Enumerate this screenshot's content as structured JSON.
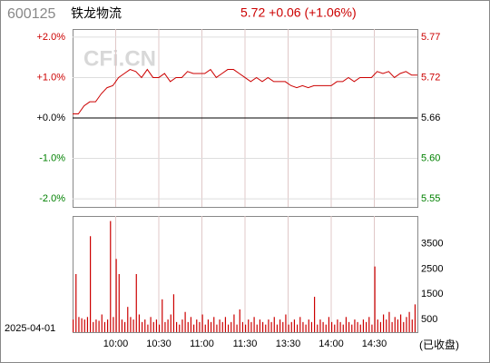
{
  "header": {
    "code": "600125",
    "name": "铁龙物流",
    "quote": "5.72 +0.06 (+1.06%)"
  },
  "watermark": "CFi.CN",
  "date": "2025-04-01",
  "status": "(已收盘)",
  "colors": {
    "up": "#cc0000",
    "down": "#008000",
    "flat": "#000000"
  },
  "chart_data": [
    {
      "type": "line",
      "x": [
        0,
        4,
        8,
        12,
        16,
        20,
        24,
        28,
        32,
        36,
        40,
        44,
        48,
        52,
        56,
        60,
        64,
        68,
        72,
        76,
        80,
        84,
        88,
        92,
        96,
        100,
        104,
        108,
        112,
        116,
        120,
        124,
        128,
        132,
        136,
        140,
        144,
        148,
        152,
        156,
        160,
        164,
        168,
        172,
        176,
        180,
        184,
        188,
        192,
        196,
        200,
        204,
        208,
        212,
        216,
        220,
        224,
        228,
        232,
        236,
        240
      ],
      "series": [
        {
          "color": "#cc0000",
          "values": [
            0.1,
            0.1,
            0.3,
            0.4,
            0.4,
            0.6,
            0.75,
            0.8,
            1.0,
            1.1,
            1.2,
            1.15,
            1.0,
            1.2,
            1.0,
            1.0,
            1.1,
            0.9,
            1.0,
            1.0,
            1.15,
            1.1,
            1.1,
            1.1,
            1.2,
            1.0,
            1.1,
            1.2,
            1.2,
            1.1,
            1.0,
            0.9,
            1.0,
            0.9,
            1.0,
            0.9,
            0.9,
            0.9,
            0.8,
            0.75,
            0.8,
            0.75,
            0.8,
            0.8,
            0.8,
            0.8,
            0.9,
            0.9,
            1.0,
            0.9,
            1.0,
            1.0,
            1.0,
            1.15,
            1.1,
            1.15,
            1.0,
            1.1,
            1.15,
            1.06,
            1.06
          ]
        }
      ],
      "xlim": [
        0,
        240
      ],
      "ylim": [
        -2.2,
        2.2
      ],
      "yticks": [
        {
          "value": 2,
          "label": "+2.0%"
        },
        {
          "value": 1,
          "label": "+1.0%"
        },
        {
          "value": 0,
          "label": "+0.0%"
        },
        {
          "value": -1,
          "label": "-1.0%"
        },
        {
          "value": -2,
          "label": "-2.0%"
        }
      ],
      "y2lim": [
        5.5355,
        5.7845
      ],
      "y2ticks": [
        {
          "value": 5.7732,
          "label": "5.77"
        },
        {
          "value": 5.7166,
          "label": "5.72"
        },
        5.66,
        {
          "value": 5.6034,
          "label": "5.60"
        },
        {
          "value": 5.5468,
          "label": "5.55"
        }
      ],
      "grid": true
    },
    {
      "type": "bar",
      "x": [
        0,
        2,
        4,
        6,
        8,
        10,
        12,
        14,
        16,
        18,
        20,
        22,
        24,
        26,
        28,
        30,
        32,
        34,
        36,
        38,
        40,
        42,
        44,
        46,
        48,
        50,
        52,
        54,
        56,
        58,
        60,
        62,
        64,
        66,
        68,
        70,
        72,
        74,
        76,
        78,
        80,
        82,
        84,
        86,
        88,
        90,
        92,
        94,
        96,
        98,
        100,
        102,
        104,
        106,
        108,
        110,
        112,
        114,
        116,
        118,
        120,
        122,
        124,
        126,
        128,
        130,
        132,
        134,
        136,
        138,
        140,
        142,
        144,
        146,
        148,
        150,
        152,
        154,
        156,
        158,
        160,
        162,
        164,
        166,
        168,
        170,
        172,
        174,
        176,
        178,
        180,
        182,
        184,
        186,
        188,
        190,
        192,
        194,
        196,
        198,
        200,
        202,
        204,
        206,
        208,
        210,
        212,
        214,
        216,
        218,
        220,
        222,
        224,
        226,
        228,
        230,
        232,
        234,
        236,
        238
      ],
      "values": [
        500,
        2300,
        600,
        550,
        500,
        600,
        3800,
        400,
        500,
        450,
        700,
        400,
        500,
        4400,
        600,
        2900,
        2300,
        500,
        400,
        1000,
        600,
        500,
        2300,
        700,
        400,
        500,
        300,
        600,
        400,
        500,
        300,
        1300,
        400,
        500,
        700,
        1500,
        400,
        300,
        500,
        800,
        400,
        600,
        300,
        500,
        400,
        700,
        300,
        500,
        400,
        600,
        300,
        500,
        400,
        600,
        300,
        400,
        700,
        300,
        900,
        400,
        300,
        500,
        400,
        600,
        300,
        500,
        400,
        300,
        500,
        400,
        600,
        300,
        500,
        400,
        700,
        300,
        400,
        500,
        300,
        600,
        400,
        300,
        500,
        400,
        1400,
        300,
        500,
        400,
        300,
        600,
        400,
        300,
        500,
        400,
        300,
        600,
        400,
        300,
        500,
        400,
        300,
        500,
        400,
        600,
        300,
        2600,
        500,
        400,
        700,
        500,
        800,
        400,
        600,
        500,
        700,
        400,
        600,
        800,
        500,
        1100
      ],
      "color": "#cc0000",
      "xlim": [
        0,
        240
      ],
      "ylim": [
        0,
        4600
      ],
      "yticks": [
        500,
        1500,
        2500,
        3500
      ],
      "xticks": [
        {
          "value": 30,
          "label": "10:00"
        },
        {
          "value": 60,
          "label": "10:30"
        },
        {
          "value": 90,
          "label": "11:00"
        },
        {
          "value": 120,
          "label": "11:30"
        },
        {
          "value": 150,
          "label": "13:30"
        },
        {
          "value": 180,
          "label": "14:00"
        },
        {
          "value": 210,
          "label": "14:30"
        }
      ],
      "grid": true
    }
  ]
}
